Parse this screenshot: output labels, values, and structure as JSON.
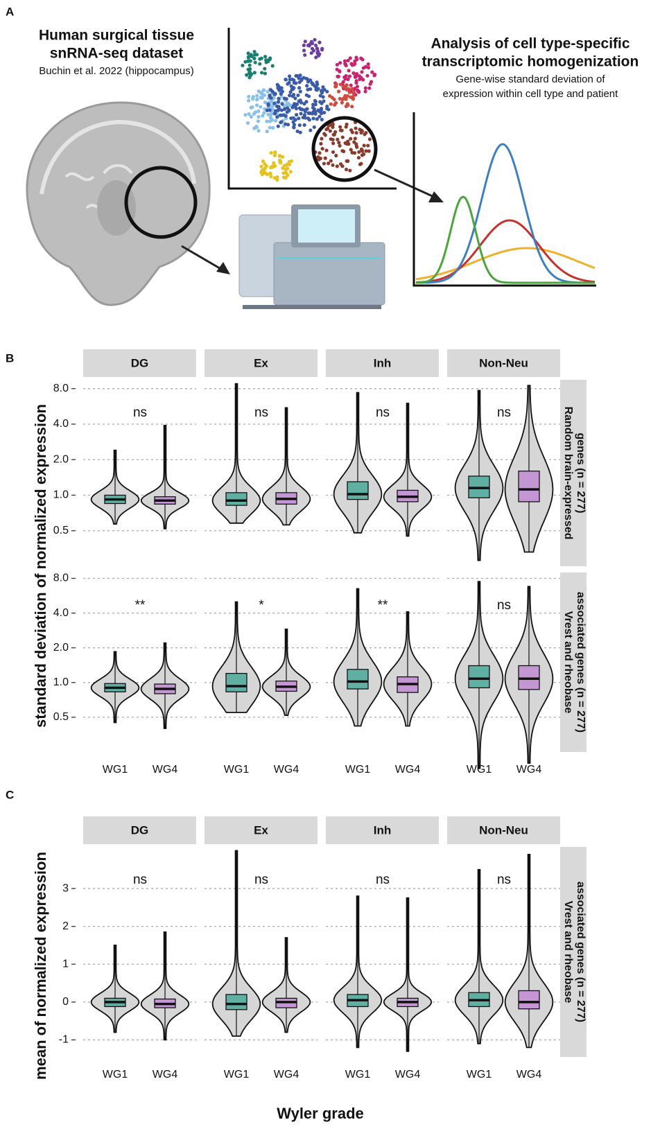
{
  "panel_labels": [
    "A",
    "B",
    "C"
  ],
  "illustration": {
    "left_title": [
      "Human surgical tissue",
      "snRNA-seq dataset"
    ],
    "left_subtitle": "Buchin et al. 2022 (hippocampus)",
    "right_title": [
      "Analysis of cell type-specific",
      "transcriptomic homogenization"
    ],
    "right_subtitle": [
      "Gene-wise standard deviation of",
      "expression within cell type and patient"
    ]
  },
  "chart_data": [
    {
      "type": "violin",
      "log_scale": true,
      "grid": true,
      "ylabel": "standard deviation of normalized expression",
      "facets": [
        "DG",
        "Ex",
        "Inh",
        "Non-Neu"
      ],
      "row_label": [
        "Random brain-expressed",
        "genes (n = 277)"
      ],
      "annotations": [
        "ns",
        "ns",
        "ns",
        "ns"
      ],
      "ylim": [
        0.25,
        9.5
      ],
      "yticks": [
        0.5,
        {
          "value": 1,
          "label": "1.0"
        },
        {
          "value": 2,
          "label": "2.0"
        },
        {
          "value": 4,
          "label": "4.0"
        },
        {
          "value": 8,
          "label": "8.0"
        }
      ],
      "series": [
        {
          "name": "WG1",
          "color": "#5fb0a3",
          "min": [
            0.57,
            0.58,
            0.48,
            0.28
          ],
          "q1": [
            0.85,
            0.82,
            0.92,
            0.95
          ],
          "median": [
            0.92,
            0.9,
            1.02,
            1.15
          ],
          "q3": [
            1.0,
            1.05,
            1.3,
            1.45
          ],
          "max": [
            2.4,
            8.8,
            7.4,
            7.7
          ]
        },
        {
          "name": "WG4",
          "color": "#c497d4",
          "min": [
            0.52,
            0.56,
            0.45,
            0.33
          ],
          "q1": [
            0.84,
            0.84,
            0.88,
            0.88
          ],
          "median": [
            0.9,
            0.93,
            0.97,
            1.12
          ],
          "q3": [
            0.97,
            1.05,
            1.1,
            1.6
          ],
          "max": [
            3.9,
            5.5,
            6.0,
            8.5
          ]
        }
      ]
    },
    {
      "type": "violin",
      "log_scale": true,
      "grid": true,
      "categories": [
        "WG1",
        "WG4"
      ],
      "row_label": [
        "Vrest and rheobase",
        "associated genes (n = 277)"
      ],
      "annotations": [
        "**",
        "*",
        "**",
        "ns"
      ],
      "ylim": [
        0.25,
        9.0
      ],
      "yticks": [
        0.5,
        {
          "value": 1,
          "label": "1.0"
        },
        {
          "value": 2,
          "label": "2.0"
        },
        {
          "value": 4,
          "label": "4.0"
        },
        {
          "value": 8,
          "label": "8.0"
        }
      ],
      "series": [
        {
          "name": "WG1",
          "color": "#5fb0a3",
          "min": [
            0.45,
            0.55,
            0.42,
            0.18
          ],
          "q1": [
            0.83,
            0.83,
            0.88,
            0.9
          ],
          "median": [
            0.9,
            0.93,
            1.02,
            1.08
          ],
          "q3": [
            0.98,
            1.2,
            1.3,
            1.4
          ],
          "max": [
            1.85,
            5.0,
            6.5,
            7.5
          ]
        },
        {
          "name": "WG4",
          "color": "#c497d4",
          "min": [
            0.4,
            0.52,
            0.42,
            0.2
          ],
          "q1": [
            0.8,
            0.84,
            0.82,
            0.87
          ],
          "median": [
            0.88,
            0.92,
            0.97,
            1.08
          ],
          "q3": [
            0.97,
            1.03,
            1.12,
            1.4
          ],
          "max": [
            2.2,
            2.9,
            4.1,
            6.8
          ]
        }
      ]
    },
    {
      "type": "violin",
      "log_scale": false,
      "grid": true,
      "ylabel": "mean of normalized expression",
      "xlabel": "Wyler grade",
      "facets": [
        "DG",
        "Ex",
        "Inh",
        "Non-Neu"
      ],
      "categories": [
        "WG1",
        "WG4"
      ],
      "row_label": [
        "Vrest and rheobase",
        "associated genes (n = 277)"
      ],
      "annotations": [
        "ns",
        "ns",
        "ns",
        "ns"
      ],
      "ylim": [
        -1.45,
        4.1
      ],
      "yticks": [
        -1,
        0,
        1,
        2,
        3
      ],
      "series": [
        {
          "name": "WG1",
          "color": "#5fb0a3",
          "min": [
            -0.8,
            -0.9,
            -1.2,
            -1.1
          ],
          "q1": [
            -0.12,
            -0.2,
            -0.12,
            -0.12
          ],
          "median": [
            0,
            -0.05,
            0.05,
            0.05
          ],
          "q3": [
            0.1,
            0.2,
            0.2,
            0.25
          ],
          "max": [
            1.5,
            4.0,
            2.8,
            3.5
          ]
        },
        {
          "name": "WG4",
          "color": "#c497d4",
          "min": [
            -1.0,
            -0.8,
            -1.3,
            -1.2
          ],
          "q1": [
            -0.15,
            -0.15,
            -0.12,
            -0.18
          ],
          "median": [
            -0.05,
            0,
            0,
            0
          ],
          "q3": [
            0.08,
            0.1,
            0.1,
            0.3
          ],
          "max": [
            1.85,
            1.7,
            2.75,
            3.9
          ]
        }
      ]
    }
  ]
}
